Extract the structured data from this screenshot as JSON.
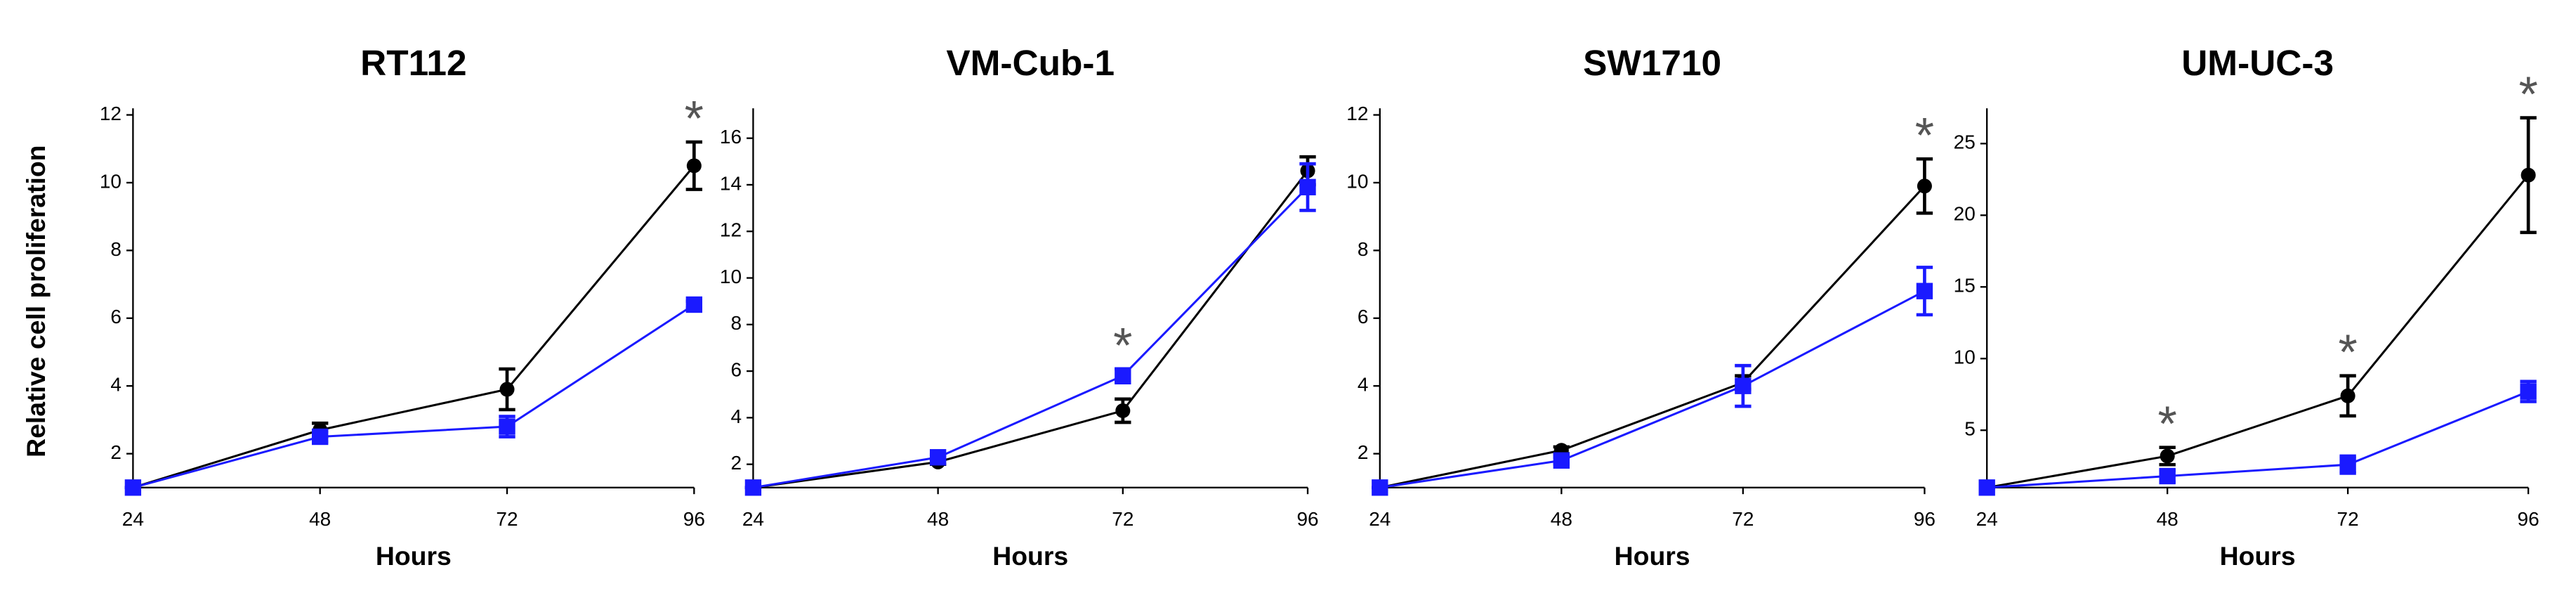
{
  "chart_data": [
    {
      "type": "line",
      "title": "RT112",
      "ylabel": "Relative cell proliferation",
      "xlabel": "Hours",
      "x": [
        24,
        48,
        72,
        96
      ],
      "xlim": [
        24,
        96
      ],
      "xticks": [
        24,
        48,
        72,
        96
      ],
      "ylim": [
        1,
        12
      ],
      "yticks": [
        2,
        4,
        6,
        8,
        10,
        12
      ],
      "series": [
        {
          "color": "#000000",
          "marker": "circle",
          "values": [
            1,
            2.7,
            3.9,
            10.5
          ],
          "errors": [
            0,
            0.2,
            0.6,
            0.7
          ]
        },
        {
          "color": "#1a1aff",
          "marker": "square",
          "values": [
            1,
            2.5,
            2.8,
            6.4
          ],
          "errors": [
            0,
            0.15,
            0.3,
            0.1
          ]
        }
      ],
      "annotations": [
        {
          "x": 96,
          "text": "*"
        }
      ]
    },
    {
      "type": "line",
      "title": "VM-Cub-1",
      "xlabel": "Hours",
      "x": [
        24,
        48,
        72,
        96
      ],
      "xlim": [
        24,
        96
      ],
      "xticks": [
        24,
        48,
        72,
        96
      ],
      "ylim": [
        1,
        17
      ],
      "yticks": [
        2,
        4,
        6,
        8,
        10,
        12,
        14,
        16
      ],
      "series": [
        {
          "color": "#000000",
          "marker": "circle",
          "values": [
            1,
            2.1,
            4.3,
            14.6
          ],
          "errors": [
            0,
            0.1,
            0.5,
            0.6
          ]
        },
        {
          "color": "#1a1aff",
          "marker": "square",
          "values": [
            1,
            2.3,
            5.8,
            13.9
          ],
          "errors": [
            0,
            0.1,
            0.3,
            1.0
          ]
        }
      ],
      "annotations": [
        {
          "x": 72,
          "text": "*"
        }
      ]
    },
    {
      "type": "line",
      "title": "SW1710",
      "xlabel": "Hours",
      "x": [
        24,
        48,
        72,
        96
      ],
      "xlim": [
        24,
        96
      ],
      "xticks": [
        24,
        48,
        72,
        96
      ],
      "ylim": [
        1,
        12
      ],
      "yticks": [
        2,
        4,
        6,
        8,
        10,
        12
      ],
      "series": [
        {
          "color": "#000000",
          "marker": "circle",
          "values": [
            1,
            2.1,
            4.1,
            9.9
          ],
          "errors": [
            0,
            0.1,
            0.2,
            0.8
          ]
        },
        {
          "color": "#1a1aff",
          "marker": "square",
          "values": [
            1,
            1.8,
            4.0,
            6.8
          ],
          "errors": [
            0,
            0.1,
            0.6,
            0.7
          ]
        }
      ],
      "annotations": [
        {
          "x": 96,
          "text": "*"
        }
      ]
    },
    {
      "type": "line",
      "title": "UM-UC-3",
      "xlabel": "Hours",
      "x": [
        24,
        48,
        72,
        96
      ],
      "xlim": [
        24,
        96
      ],
      "xticks": [
        24,
        48,
        72,
        96
      ],
      "ylim": [
        1,
        27
      ],
      "yticks": [
        5,
        10,
        15,
        20,
        25
      ],
      "series": [
        {
          "color": "#000000",
          "marker": "circle",
          "values": [
            1,
            3.2,
            7.4,
            22.8
          ],
          "errors": [
            0,
            0.6,
            1.4,
            4
          ]
        },
        {
          "color": "#1a1aff",
          "marker": "square",
          "values": [
            1,
            1.8,
            2.6,
            7.7
          ],
          "errors": [
            0,
            0.4,
            0.6,
            0.7
          ]
        }
      ],
      "annotations": [
        {
          "x": 48,
          "text": "*"
        },
        {
          "x": 72,
          "text": "*"
        },
        {
          "x": 96,
          "text": "*"
        }
      ]
    }
  ]
}
